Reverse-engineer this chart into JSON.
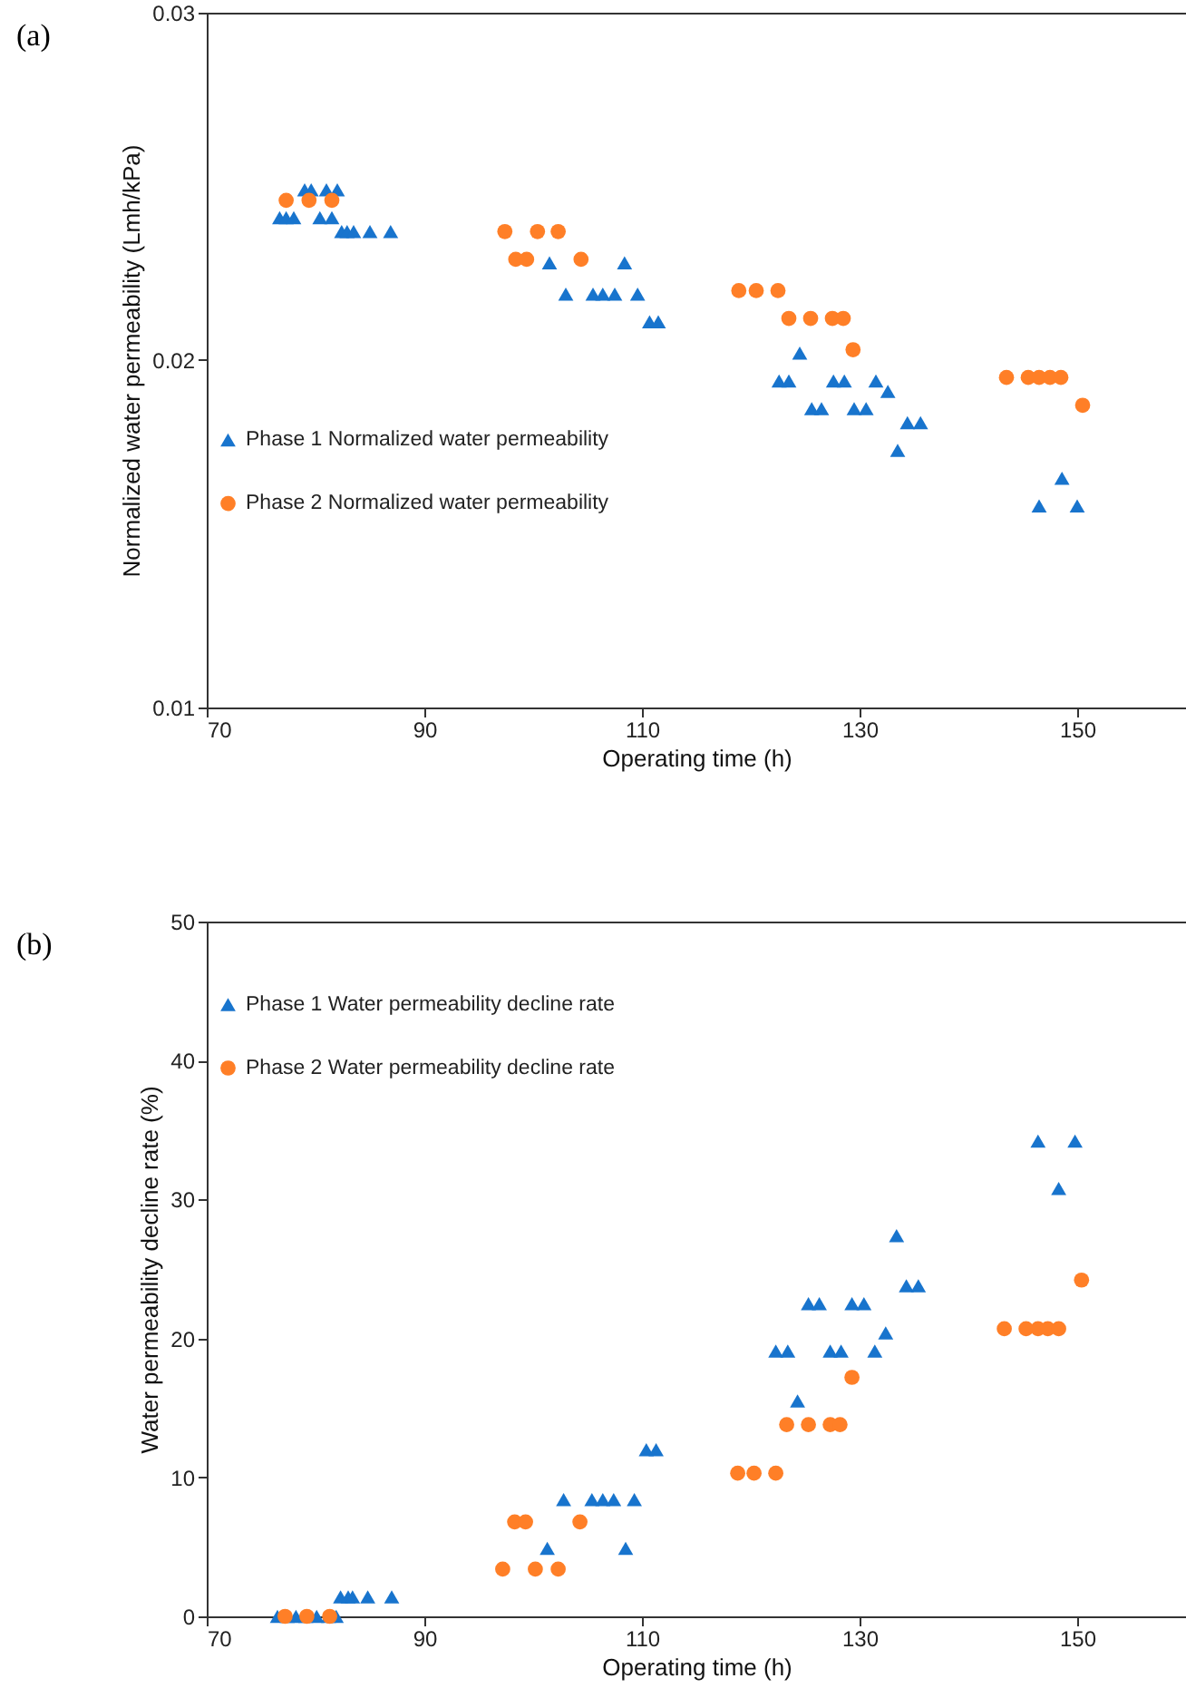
{
  "chart_data": [
    {
      "type": "scatter",
      "title": "(a)",
      "xlabel": "Operating time (h)",
      "ylabel": "Normalized water permeability  (Lmh/kPa)",
      "xlim": [
        70,
        160
      ],
      "xticks": [
        70,
        90,
        110,
        130,
        150
      ],
      "ylim": [
        0.01,
        0.03
      ],
      "yticks": [
        0.01,
        0.02,
        0.03
      ],
      "legend": "left",
      "series": [
        {
          "name": "Phase 1 Normalized water permeability",
          "color": "#1874cd",
          "marker": "triangle",
          "x": [
            79.0,
            79.6,
            81.0,
            82.0,
            76.7,
            77.3,
            78.0,
            80.4,
            81.5,
            82.4,
            82.9,
            83.5,
            85.0,
            86.9,
            101.5,
            108.4,
            103.0,
            105.5,
            106.4,
            107.5,
            109.6,
            110.7,
            111.5,
            124.5,
            122.6,
            123.5,
            127.6,
            128.6,
            131.5,
            132.6,
            125.6,
            126.5,
            129.5,
            130.6,
            134.4,
            135.6,
            133.5,
            148.6,
            146.5,
            150.0
          ],
          "values": [
            0.0249,
            0.0249,
            0.0249,
            0.0249,
            0.0241,
            0.0241,
            0.0241,
            0.0241,
            0.0241,
            0.0237,
            0.0237,
            0.0237,
            0.0237,
            0.0237,
            0.0228,
            0.0228,
            0.0219,
            0.0219,
            0.0219,
            0.0219,
            0.0219,
            0.0211,
            0.0211,
            0.0202,
            0.0194,
            0.0194,
            0.0194,
            0.0194,
            0.0194,
            0.0191,
            0.0186,
            0.0186,
            0.0186,
            0.0186,
            0.0182,
            0.0182,
            0.0174,
            0.0166,
            0.0158,
            0.0158
          ]
        },
        {
          "name": "Phase 2 Normalized water permeability",
          "color": "#ff7f27",
          "marker": "circle",
          "x": [
            77.3,
            79.4,
            81.5,
            97.4,
            100.4,
            102.3,
            98.4,
            99.4,
            104.4,
            118.9,
            120.5,
            122.5,
            123.5,
            125.5,
            127.5,
            128.5,
            129.4,
            143.5,
            145.5,
            146.5,
            147.5,
            148.5,
            150.5
          ],
          "values": [
            0.0246,
            0.0246,
            0.0246,
            0.0237,
            0.0237,
            0.0237,
            0.0229,
            0.0229,
            0.0229,
            0.022,
            0.022,
            0.022,
            0.0212,
            0.0212,
            0.0212,
            0.0212,
            0.0203,
            0.0195,
            0.0195,
            0.0195,
            0.0195,
            0.0195,
            0.0187
          ]
        }
      ]
    },
    {
      "type": "scatter",
      "title": "(b)",
      "xlabel": "Operating time (h)",
      "ylabel": "Water permeability decline rate (%)",
      "xlim": [
        70,
        160
      ],
      "xticks": [
        70,
        90,
        110,
        130,
        150
      ],
      "ylim": [
        0,
        50
      ],
      "yticks": [
        0,
        10,
        20,
        30,
        40,
        50
      ],
      "legend": "top left",
      "series": [
        {
          "name": "Phase 1 Water permeability decline rate",
          "color": "#1874cd",
          "marker": "triangle",
          "x": [
            76.5,
            77.4,
            78.2,
            79.1,
            80.1,
            81.2,
            81.9,
            82.3,
            83.0,
            83.4,
            84.8,
            87.0,
            101.3,
            108.5,
            102.8,
            105.4,
            106.4,
            107.4,
            109.3,
            110.4,
            111.3,
            124.3,
            122.3,
            123.4,
            127.3,
            128.3,
            131.4,
            132.4,
            125.3,
            126.3,
            129.3,
            130.4,
            134.3,
            135.4,
            133.4,
            146.4,
            149.8,
            148.3
          ],
          "values": [
            0,
            0,
            0,
            0,
            0,
            0,
            0,
            1.4,
            1.4,
            1.4,
            1.4,
            1.4,
            4.9,
            4.9,
            8.4,
            8.4,
            8.4,
            8.4,
            8.4,
            12.0,
            12.0,
            15.5,
            19.1,
            19.1,
            19.1,
            19.1,
            19.1,
            20.4,
            22.5,
            22.5,
            22.5,
            22.5,
            23.8,
            23.8,
            27.4,
            34.2,
            34.2,
            30.8
          ]
        },
        {
          "name": "Phase 2 Water permeability decline rate",
          "color": "#ff7f27",
          "marker": "circle",
          "x": [
            77.2,
            79.2,
            81.3,
            97.2,
            100.2,
            102.3,
            98.3,
            99.3,
            104.3,
            118.8,
            120.3,
            122.3,
            123.3,
            125.3,
            127.3,
            128.2,
            129.3,
            143.3,
            145.3,
            146.4,
            147.3,
            148.3,
            150.4
          ],
          "values": [
            0,
            0,
            0,
            3.4,
            3.4,
            3.4,
            6.8,
            6.8,
            6.8,
            10.3,
            10.3,
            10.3,
            13.8,
            13.8,
            13.8,
            13.8,
            17.2,
            20.7,
            20.7,
            20.7,
            20.7,
            20.7,
            24.2
          ]
        }
      ]
    }
  ]
}
